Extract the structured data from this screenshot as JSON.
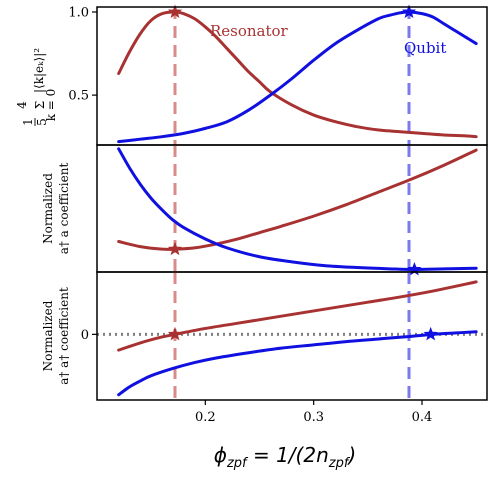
{
  "chart_data": {
    "type": "line",
    "xlabel": "ϕzpf = 1/(2nzpf)",
    "x_ticks": [
      0.2,
      0.3,
      0.4
    ],
    "xlim": [
      0.1,
      0.46
    ],
    "colors": {
      "resonator": "#a83232",
      "qubit": "#1010e0",
      "resonator_vline": "#d98a8a",
      "qubit_vline": "#7a7aee",
      "zero_line": "#808080"
    },
    "vlines": {
      "resonator_x": 0.172,
      "qubit_x": 0.388
    },
    "panels": [
      {
        "id": "top",
        "ylabel_line1": "1",
        "ylabel_line2": "5",
        "ylabel_sum_top": "4",
        "ylabel_sum_bottom": "k = 0",
        "ylabel_expr": "|⟨k|eₖ⟩|²",
        "y_ticks": [
          0.5,
          1.0
        ],
        "y_tick_labels": [
          "0.5",
          "1.0"
        ],
        "ylim": [
          0.2,
          1.03
        ],
        "annotations": [
          {
            "text": "Resonator",
            "series": "resonator"
          },
          {
            "text": "Qubit",
            "series": "qubit"
          }
        ],
        "series": [
          {
            "key": "resonator",
            "x": [
              0.12,
              0.13,
              0.14,
              0.15,
              0.16,
              0.172,
              0.18,
              0.19,
              0.2,
              0.21,
              0.22,
              0.23,
              0.24,
              0.25,
              0.26,
              0.28,
              0.3,
              0.32,
              0.34,
              0.36,
              0.38,
              0.4,
              0.42,
              0.44,
              0.45
            ],
            "y": [
              0.63,
              0.76,
              0.87,
              0.95,
              0.99,
              1.0,
              0.99,
              0.96,
              0.91,
              0.85,
              0.78,
              0.71,
              0.64,
              0.58,
              0.52,
              0.44,
              0.38,
              0.34,
              0.31,
              0.29,
              0.28,
              0.27,
              0.26,
              0.255,
              0.25
            ]
          },
          {
            "key": "qubit",
            "x": [
              0.12,
              0.14,
              0.16,
              0.18,
              0.2,
              0.22,
              0.24,
              0.26,
              0.28,
              0.3,
              0.32,
              0.34,
              0.36,
              0.37,
              0.38,
              0.388,
              0.4,
              0.41,
              0.42,
              0.43,
              0.44,
              0.45
            ],
            "y": [
              0.22,
              0.235,
              0.25,
              0.27,
              0.3,
              0.34,
              0.41,
              0.5,
              0.6,
              0.71,
              0.81,
              0.89,
              0.96,
              0.98,
              0.995,
              1.0,
              0.99,
              0.97,
              0.93,
              0.89,
              0.85,
              0.81
            ]
          }
        ],
        "markers": [
          {
            "key": "resonator",
            "x": 0.172,
            "y": 1.0
          },
          {
            "key": "qubit",
            "x": 0.388,
            "y": 1.0
          }
        ]
      },
      {
        "id": "middle",
        "ylabel_line1": "Normalized",
        "ylabel_line2": "a† a coefficient",
        "ylim": [
          0,
          1
        ],
        "series": [
          {
            "key": "resonator",
            "x": [
              0.12,
              0.14,
              0.16,
              0.172,
              0.19,
              0.21,
              0.23,
              0.25,
              0.27,
              0.3,
              0.33,
              0.36,
              0.39,
              0.42,
              0.45
            ],
            "y": [
              0.24,
              0.2,
              0.18,
              0.18,
              0.19,
              0.22,
              0.26,
              0.31,
              0.36,
              0.44,
              0.53,
              0.63,
              0.73,
              0.84,
              0.96
            ]
          },
          {
            "key": "qubit",
            "x": [
              0.12,
              0.13,
              0.14,
              0.15,
              0.16,
              0.17,
              0.18,
              0.2,
              0.22,
              0.25,
              0.28,
              0.31,
              0.34,
              0.37,
              0.393,
              0.42,
              0.45
            ],
            "y": [
              0.97,
              0.82,
              0.69,
              0.58,
              0.49,
              0.41,
              0.35,
              0.26,
              0.19,
              0.12,
              0.08,
              0.05,
              0.035,
              0.025,
              0.02,
              0.025,
              0.03
            ]
          }
        ],
        "markers": [
          {
            "key": "resonator",
            "x": 0.172,
            "y": 0.18
          },
          {
            "key": "qubit",
            "x": 0.393,
            "y": 0.02
          }
        ]
      },
      {
        "id": "bottom",
        "ylabel_line1": "Normalized",
        "ylabel_line2": "a† a† coefficient",
        "y_ticks": [
          0
        ],
        "y_tick_labels": [
          "0"
        ],
        "ylim": [
          -1.0,
          0.95
        ],
        "zero_line": 0,
        "series": [
          {
            "key": "resonator",
            "x": [
              0.12,
              0.14,
              0.16,
              0.172,
              0.2,
              0.23,
              0.26,
              0.29,
              0.32,
              0.35,
              0.38,
              0.41,
              0.45
            ],
            "y": [
              -0.24,
              -0.13,
              -0.04,
              0.0,
              0.09,
              0.17,
              0.25,
              0.33,
              0.41,
              0.49,
              0.57,
              0.66,
              0.8
            ]
          },
          {
            "key": "qubit",
            "x": [
              0.12,
              0.13,
              0.14,
              0.15,
              0.17,
              0.19,
              0.21,
              0.24,
              0.27,
              0.3,
              0.33,
              0.36,
              0.39,
              0.41,
              0.43,
              0.45
            ],
            "y": [
              -0.92,
              -0.8,
              -0.71,
              -0.63,
              -0.52,
              -0.43,
              -0.36,
              -0.28,
              -0.21,
              -0.16,
              -0.11,
              -0.07,
              -0.03,
              0.0,
              0.02,
              0.04
            ]
          }
        ],
        "markers": [
          {
            "key": "resonator",
            "x": 0.172,
            "y": 0.0
          },
          {
            "key": "qubit",
            "x": 0.408,
            "y": 0.0
          }
        ]
      }
    ]
  }
}
